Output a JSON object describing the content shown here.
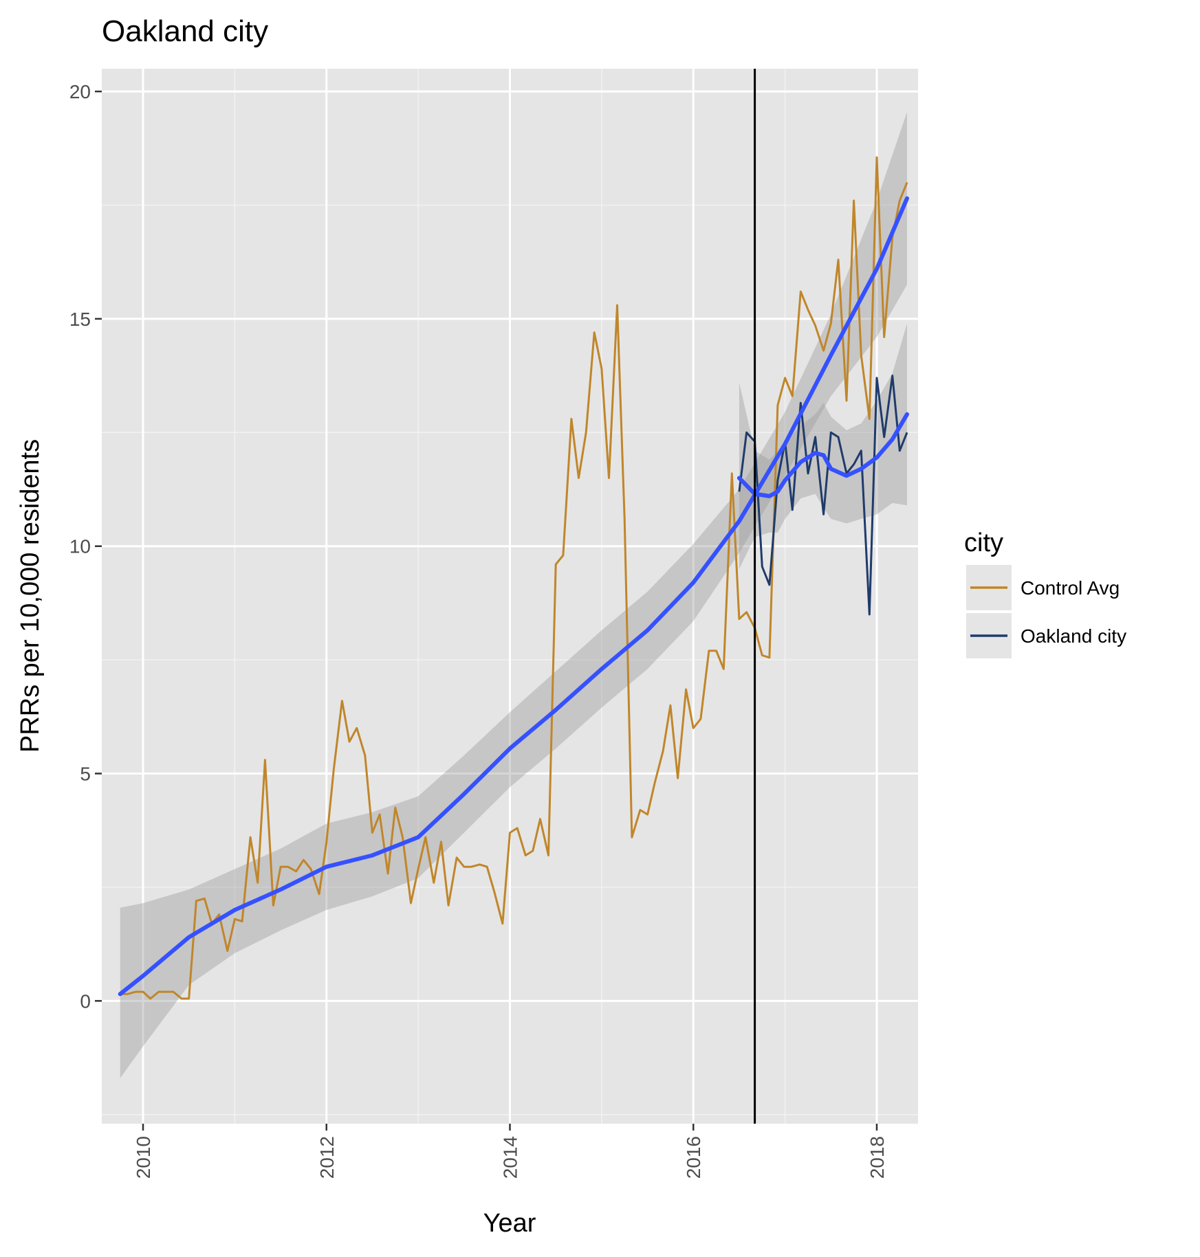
{
  "chart_data": {
    "type": "line",
    "title": "Oakland city",
    "xlabel": "Year",
    "ylabel": "PRRs per 10,000 residents",
    "xlim": [
      2009.55,
      2018.45
    ],
    "ylim": [
      -2.7,
      20.5
    ],
    "x_ticks": [
      2010,
      2012,
      2014,
      2016,
      2018
    ],
    "y_ticks": [
      0,
      5,
      10,
      15,
      20
    ],
    "grid": true,
    "legend": {
      "title": "city",
      "position": "right"
    },
    "vline_x": 2016.67,
    "series": [
      {
        "name": "Control Avg",
        "color": "#c0862a",
        "x": [
          2009.75,
          2009.83,
          2009.92,
          2010.0,
          2010.08,
          2010.17,
          2010.25,
          2010.33,
          2010.42,
          2010.5,
          2010.58,
          2010.67,
          2010.75,
          2010.83,
          2010.92,
          2011.0,
          2011.08,
          2011.17,
          2011.25,
          2011.33,
          2011.42,
          2011.5,
          2011.58,
          2011.67,
          2011.75,
          2011.83,
          2011.92,
          2012.0,
          2012.08,
          2012.17,
          2012.25,
          2012.33,
          2012.42,
          2012.5,
          2012.58,
          2012.67,
          2012.75,
          2012.83,
          2012.92,
          2013.0,
          2013.08,
          2013.17,
          2013.25,
          2013.33,
          2013.42,
          2013.5,
          2013.58,
          2013.67,
          2013.75,
          2013.83,
          2013.92,
          2014.0,
          2014.08,
          2014.17,
          2014.25,
          2014.33,
          2014.42,
          2014.5,
          2014.58,
          2014.67,
          2014.75,
          2014.83,
          2014.92,
          2015.0,
          2015.08,
          2015.17,
          2015.25,
          2015.33,
          2015.42,
          2015.5,
          2015.58,
          2015.67,
          2015.75,
          2015.83,
          2015.92,
          2016.0,
          2016.08,
          2016.17,
          2016.25,
          2016.33,
          2016.42,
          2016.5,
          2016.58,
          2016.67,
          2016.75,
          2016.83,
          2016.92,
          2017.0,
          2017.08,
          2017.17,
          2017.25,
          2017.33,
          2017.42,
          2017.5,
          2017.58,
          2017.67,
          2017.75,
          2017.83,
          2017.92,
          2018.0,
          2018.08,
          2018.17,
          2018.25,
          2018.33
        ],
        "y": [
          0.15,
          0.15,
          0.2,
          0.2,
          0.05,
          0.2,
          0.2,
          0.2,
          0.05,
          0.05,
          2.2,
          2.25,
          1.7,
          1.9,
          1.1,
          1.8,
          1.75,
          3.6,
          2.6,
          5.3,
          2.1,
          2.95,
          2.95,
          2.85,
          3.1,
          2.9,
          2.35,
          3.5,
          5.1,
          6.6,
          5.7,
          6.0,
          5.4,
          3.7,
          4.1,
          2.8,
          4.25,
          3.6,
          2.15,
          2.9,
          3.6,
          2.6,
          3.5,
          2.1,
          3.15,
          2.95,
          2.95,
          3.0,
          2.95,
          2.4,
          1.7,
          3.7,
          3.8,
          3.2,
          3.3,
          4.0,
          3.2,
          9.6,
          9.8,
          12.8,
          11.5,
          12.5,
          14.7,
          13.9,
          11.5,
          15.3,
          10.6,
          3.6,
          4.2,
          4.1,
          4.8,
          5.5,
          6.5,
          4.9,
          6.85,
          6.0,
          6.2,
          7.7,
          7.7,
          7.3,
          11.6,
          8.4,
          8.55,
          8.2,
          7.6,
          7.55,
          13.1,
          13.7,
          13.3,
          15.6,
          15.2,
          14.85,
          14.3,
          14.9,
          16.3,
          13.2,
          17.6,
          14.2,
          12.8,
          18.55,
          14.6,
          16.8,
          17.6,
          18.0
        ]
      },
      {
        "name": "Oakland city",
        "color": "#1f3b6b",
        "x": [
          2016.5,
          2016.58,
          2016.67,
          2016.75,
          2016.83,
          2016.92,
          2017.0,
          2017.08,
          2017.17,
          2017.25,
          2017.33,
          2017.42,
          2017.5,
          2017.58,
          2017.67,
          2017.75,
          2017.83,
          2017.92,
          2018.0,
          2018.08,
          2018.17,
          2018.25,
          2018.33
        ],
        "y": [
          11.2,
          12.5,
          12.3,
          9.55,
          9.15,
          11.45,
          12.3,
          10.8,
          13.15,
          11.6,
          12.4,
          10.7,
          12.5,
          12.4,
          11.6,
          11.8,
          12.1,
          8.5,
          13.7,
          12.4,
          13.75,
          12.1,
          12.5
        ]
      }
    ],
    "smooth": [
      {
        "series": "Control Avg",
        "color": "#3551ff",
        "x": [
          2009.75,
          2010.0,
          2010.5,
          2011.0,
          2011.5,
          2012.0,
          2012.5,
          2013.0,
          2013.5,
          2014.0,
          2014.5,
          2015.0,
          2015.5,
          2016.0,
          2016.5,
          2017.0,
          2017.5,
          2018.0,
          2018.33
        ],
        "y": [
          0.15,
          0.55,
          1.4,
          2.0,
          2.45,
          2.95,
          3.2,
          3.6,
          4.55,
          5.55,
          6.4,
          7.3,
          8.15,
          9.2,
          10.55,
          12.25,
          14.2,
          16.1,
          17.65
        ],
        "ci_low": [
          -1.7,
          -1.0,
          0.35,
          1.05,
          1.55,
          2.0,
          2.3,
          2.7,
          3.7,
          4.7,
          5.55,
          6.45,
          7.3,
          8.35,
          9.85,
          11.55,
          13.3,
          14.6,
          15.75
        ],
        "ci_high": [
          2.05,
          2.15,
          2.45,
          2.9,
          3.35,
          3.9,
          4.15,
          4.5,
          5.4,
          6.35,
          7.25,
          8.15,
          9.0,
          10.05,
          11.25,
          12.95,
          15.1,
          17.6,
          19.55
        ]
      },
      {
        "series": "Oakland city",
        "color": "#3551ff",
        "x": [
          2016.5,
          2016.67,
          2016.83,
          2016.92,
          2017.0,
          2017.17,
          2017.33,
          2017.42,
          2017.5,
          2017.67,
          2017.83,
          2018.0,
          2018.17,
          2018.33
        ],
        "y": [
          11.5,
          11.15,
          11.1,
          11.2,
          11.45,
          11.85,
          12.05,
          12.0,
          11.7,
          11.55,
          11.7,
          11.95,
          12.35,
          12.9
        ],
        "ci_low": [
          9.5,
          10.2,
          10.3,
          10.3,
          10.6,
          11.05,
          11.15,
          10.85,
          10.6,
          10.5,
          10.6,
          10.7,
          10.95,
          10.9
        ],
        "ci_high": [
          13.6,
          12.1,
          11.9,
          12.1,
          12.3,
          12.65,
          12.9,
          13.15,
          12.85,
          12.55,
          12.7,
          13.2,
          13.8,
          14.9
        ]
      }
    ]
  }
}
